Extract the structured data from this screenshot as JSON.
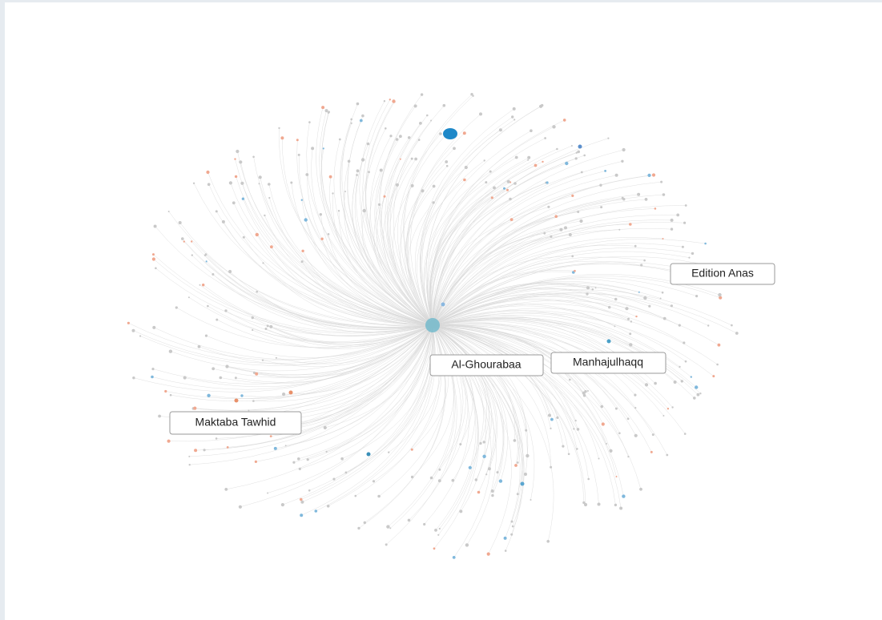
{
  "nodes": [
    {
      "label": "Edition Anas"
    },
    {
      "label": "Al-Ghourabaa"
    },
    {
      "label": "Manhajulhaqq"
    },
    {
      "label": "Maktaba Tawhid"
    }
  ]
}
